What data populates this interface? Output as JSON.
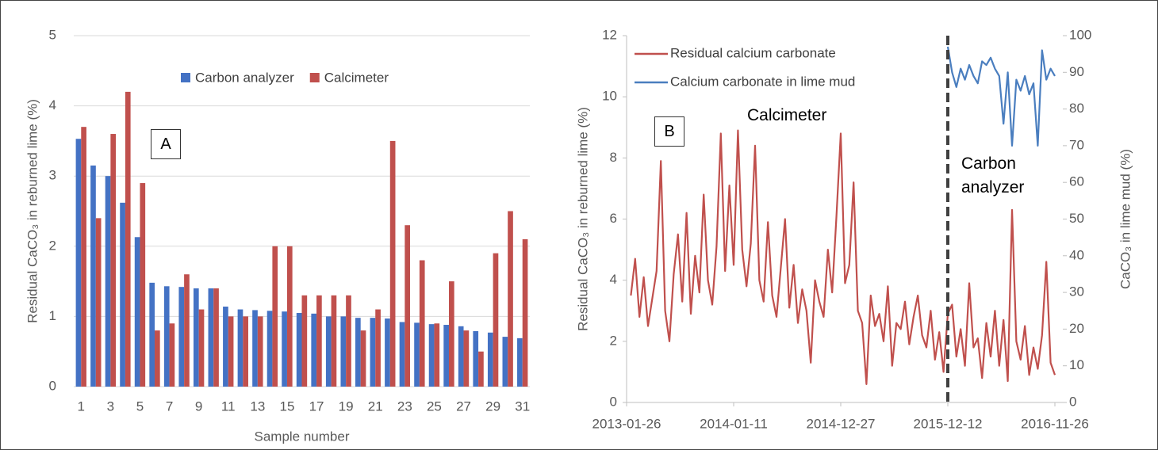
{
  "chart_data": [
    {
      "type": "bar",
      "categories": [
        1,
        null,
        3,
        null,
        5,
        null,
        7,
        null,
        9,
        null,
        11,
        null,
        13,
        null,
        15,
        null,
        17,
        null,
        19,
        null,
        21,
        null,
        23,
        null,
        25,
        null,
        27,
        null,
        29,
        null,
        31
      ],
      "series": [
        {
          "name": "Carbon analyzer",
          "color": "#4472c4",
          "values": [
            3.53,
            3.15,
            3.0,
            2.62,
            2.13,
            1.48,
            1.43,
            1.42,
            1.4,
            1.4,
            1.14,
            1.1,
            1.09,
            1.08,
            1.07,
            1.05,
            1.04,
            1.0,
            1.0,
            0.98,
            0.98,
            0.97,
            0.92,
            0.91,
            0.89,
            0.88,
            0.86,
            0.79,
            0.77,
            0.71,
            0.69
          ]
        },
        {
          "name": "Calcimeter",
          "color": "#c0504d",
          "values": [
            3.7,
            2.4,
            3.6,
            4.2,
            2.9,
            0.8,
            0.9,
            1.6,
            1.1,
            1.4,
            1.0,
            1.0,
            1.0,
            2.0,
            2.0,
            1.3,
            1.3,
            1.3,
            1.3,
            0.8,
            1.1,
            3.5,
            2.3,
            1.8,
            0.9,
            1.5,
            0.8,
            0.5,
            1.9,
            2.5,
            2.1
          ]
        }
      ],
      "ylim": [
        0,
        5
      ],
      "yticks": [
        0,
        1,
        2,
        3,
        4,
        5
      ],
      "grid": true,
      "legend": "top",
      "xlabel": "Sample number",
      "ylabel": "Residual CaCO₃ in reburned lime (%)",
      "annotations": [
        "A"
      ]
    },
    {
      "type": "line",
      "x": [
        "2013-02-09",
        "2013-02-23",
        "2013-03-09",
        "2013-03-23",
        "2013-04-06",
        "2013-04-20",
        "2013-05-04",
        "2013-05-18",
        "2013-06-01",
        "2013-06-15",
        "2013-06-29",
        "2013-07-13",
        "2013-07-27",
        "2013-08-10",
        "2013-08-24",
        "2013-09-07",
        "2013-09-21",
        "2013-10-05",
        "2013-10-19",
        "2013-11-02",
        "2013-11-16",
        "2013-11-30",
        "2013-12-14",
        "2013-12-28",
        "2014-01-11",
        "2014-01-25",
        "2014-02-08",
        "2014-02-22",
        "2014-03-08",
        "2014-03-22",
        "2014-04-05",
        "2014-04-19",
        "2014-05-03",
        "2014-05-17",
        "2014-05-31",
        "2014-06-14",
        "2014-06-28",
        "2014-07-12",
        "2014-07-26",
        "2014-08-09",
        "2014-08-23",
        "2014-09-06",
        "2014-09-20",
        "2014-10-04",
        "2014-10-18",
        "2014-11-01",
        "2014-11-15",
        "2014-11-29",
        "2014-12-13",
        "2014-12-27",
        "2015-01-10",
        "2015-01-24",
        "2015-02-07",
        "2015-02-21",
        "2015-03-07",
        "2015-03-21",
        "2015-04-04",
        "2015-04-18",
        "2015-05-02",
        "2015-05-16",
        "2015-05-30",
        "2015-06-13",
        "2015-06-27",
        "2015-07-11",
        "2015-07-25",
        "2015-08-08",
        "2015-08-22",
        "2015-09-05",
        "2015-09-19",
        "2015-10-03",
        "2015-10-17",
        "2015-10-31",
        "2015-11-14",
        "2015-11-28",
        "2015-12-12",
        "2015-12-26",
        "2016-01-09",
        "2016-01-23",
        "2016-02-06",
        "2016-02-20",
        "2016-03-05",
        "2016-03-19",
        "2016-04-02",
        "2016-04-16",
        "2016-04-30",
        "2016-05-14",
        "2016-05-28",
        "2016-06-11",
        "2016-06-25",
        "2016-07-09",
        "2016-07-23",
        "2016-08-06",
        "2016-08-20",
        "2016-09-03",
        "2016-09-17",
        "2016-10-01",
        "2016-10-15",
        "2016-10-29",
        "2016-11-12",
        "2016-11-26"
      ],
      "series": [
        {
          "name": "Residual calcium carbonate",
          "color": "#c0504d",
          "values": [
            3.5,
            4.7,
            2.8,
            4.1,
            2.5,
            3.4,
            4.3,
            7.9,
            3.0,
            2.0,
            4.2,
            5.5,
            3.3,
            6.2,
            2.9,
            4.8,
            3.6,
            6.8,
            4.0,
            3.2,
            5.1,
            8.8,
            4.3,
            7.1,
            4.5,
            8.9,
            5.0,
            3.8,
            5.2,
            8.4,
            4.0,
            3.3,
            5.9,
            3.5,
            2.8,
            4.4,
            6.0,
            3.1,
            4.5,
            2.6,
            3.7,
            3.0,
            1.3,
            4.0,
            3.3,
            2.8,
            5.0,
            3.6,
            6.1,
            8.8,
            3.9,
            4.5,
            7.2,
            3.0,
            2.6,
            0.6,
            3.5,
            2.5,
            2.9,
            2.0,
            3.8,
            1.2,
            2.6,
            2.4,
            3.3,
            1.9,
            2.8,
            3.5,
            2.2,
            1.8,
            3.0,
            1.4,
            2.3,
            1.0,
            2.9,
            3.2,
            1.5,
            2.4,
            1.2,
            3.9,
            1.8,
            2.1,
            0.8,
            2.6,
            1.5,
            3.0,
            1.2,
            2.7,
            0.7,
            6.3,
            2.0,
            1.4,
            2.5,
            0.9,
            1.8,
            1.1,
            2.2,
            4.6,
            1.3,
            0.9
          ]
        },
        {
          "name": "Calcium carbonate in lime mud",
          "color": "#4a7ebf",
          "axis": "y2",
          "values": [
            null,
            null,
            null,
            null,
            null,
            null,
            null,
            null,
            null,
            null,
            null,
            null,
            null,
            null,
            null,
            null,
            null,
            null,
            null,
            null,
            null,
            null,
            null,
            null,
            null,
            null,
            null,
            null,
            null,
            null,
            null,
            null,
            null,
            null,
            null,
            null,
            null,
            null,
            null,
            null,
            null,
            null,
            null,
            null,
            null,
            null,
            null,
            null,
            null,
            null,
            null,
            null,
            null,
            null,
            null,
            null,
            null,
            null,
            null,
            null,
            null,
            null,
            null,
            null,
            null,
            null,
            null,
            null,
            null,
            null,
            null,
            null,
            null,
            null,
            97,
            90,
            86,
            91,
            88,
            92,
            89,
            87,
            93,
            92,
            94,
            91,
            89,
            76,
            90,
            70,
            88,
            85,
            89,
            84,
            87,
            70,
            96,
            88,
            91,
            89
          ]
        }
      ],
      "xlim": [
        "2013-01-26",
        "2016-11-26"
      ],
      "xticks": [
        "2013-01-26",
        "2014-01-11",
        "2014-12-27",
        "2015-12-12",
        "2016-11-26"
      ],
      "ylim": [
        0,
        12
      ],
      "yticks": [
        0,
        2,
        4,
        6,
        8,
        10,
        12
      ],
      "y2lim": [
        0,
        100
      ],
      "y2ticks": [
        0,
        10,
        20,
        30,
        40,
        50,
        60,
        70,
        80,
        90,
        100
      ],
      "grid": false,
      "legend": "upper left",
      "ylabel": "Residual CaCO₃ in reburned lime (%)",
      "y2label": "CaCO₃ in lime mud (%)",
      "vline": "2015-12-12",
      "annotations": [
        "B",
        "Calcimeter",
        "Carbon analyzer"
      ]
    }
  ]
}
